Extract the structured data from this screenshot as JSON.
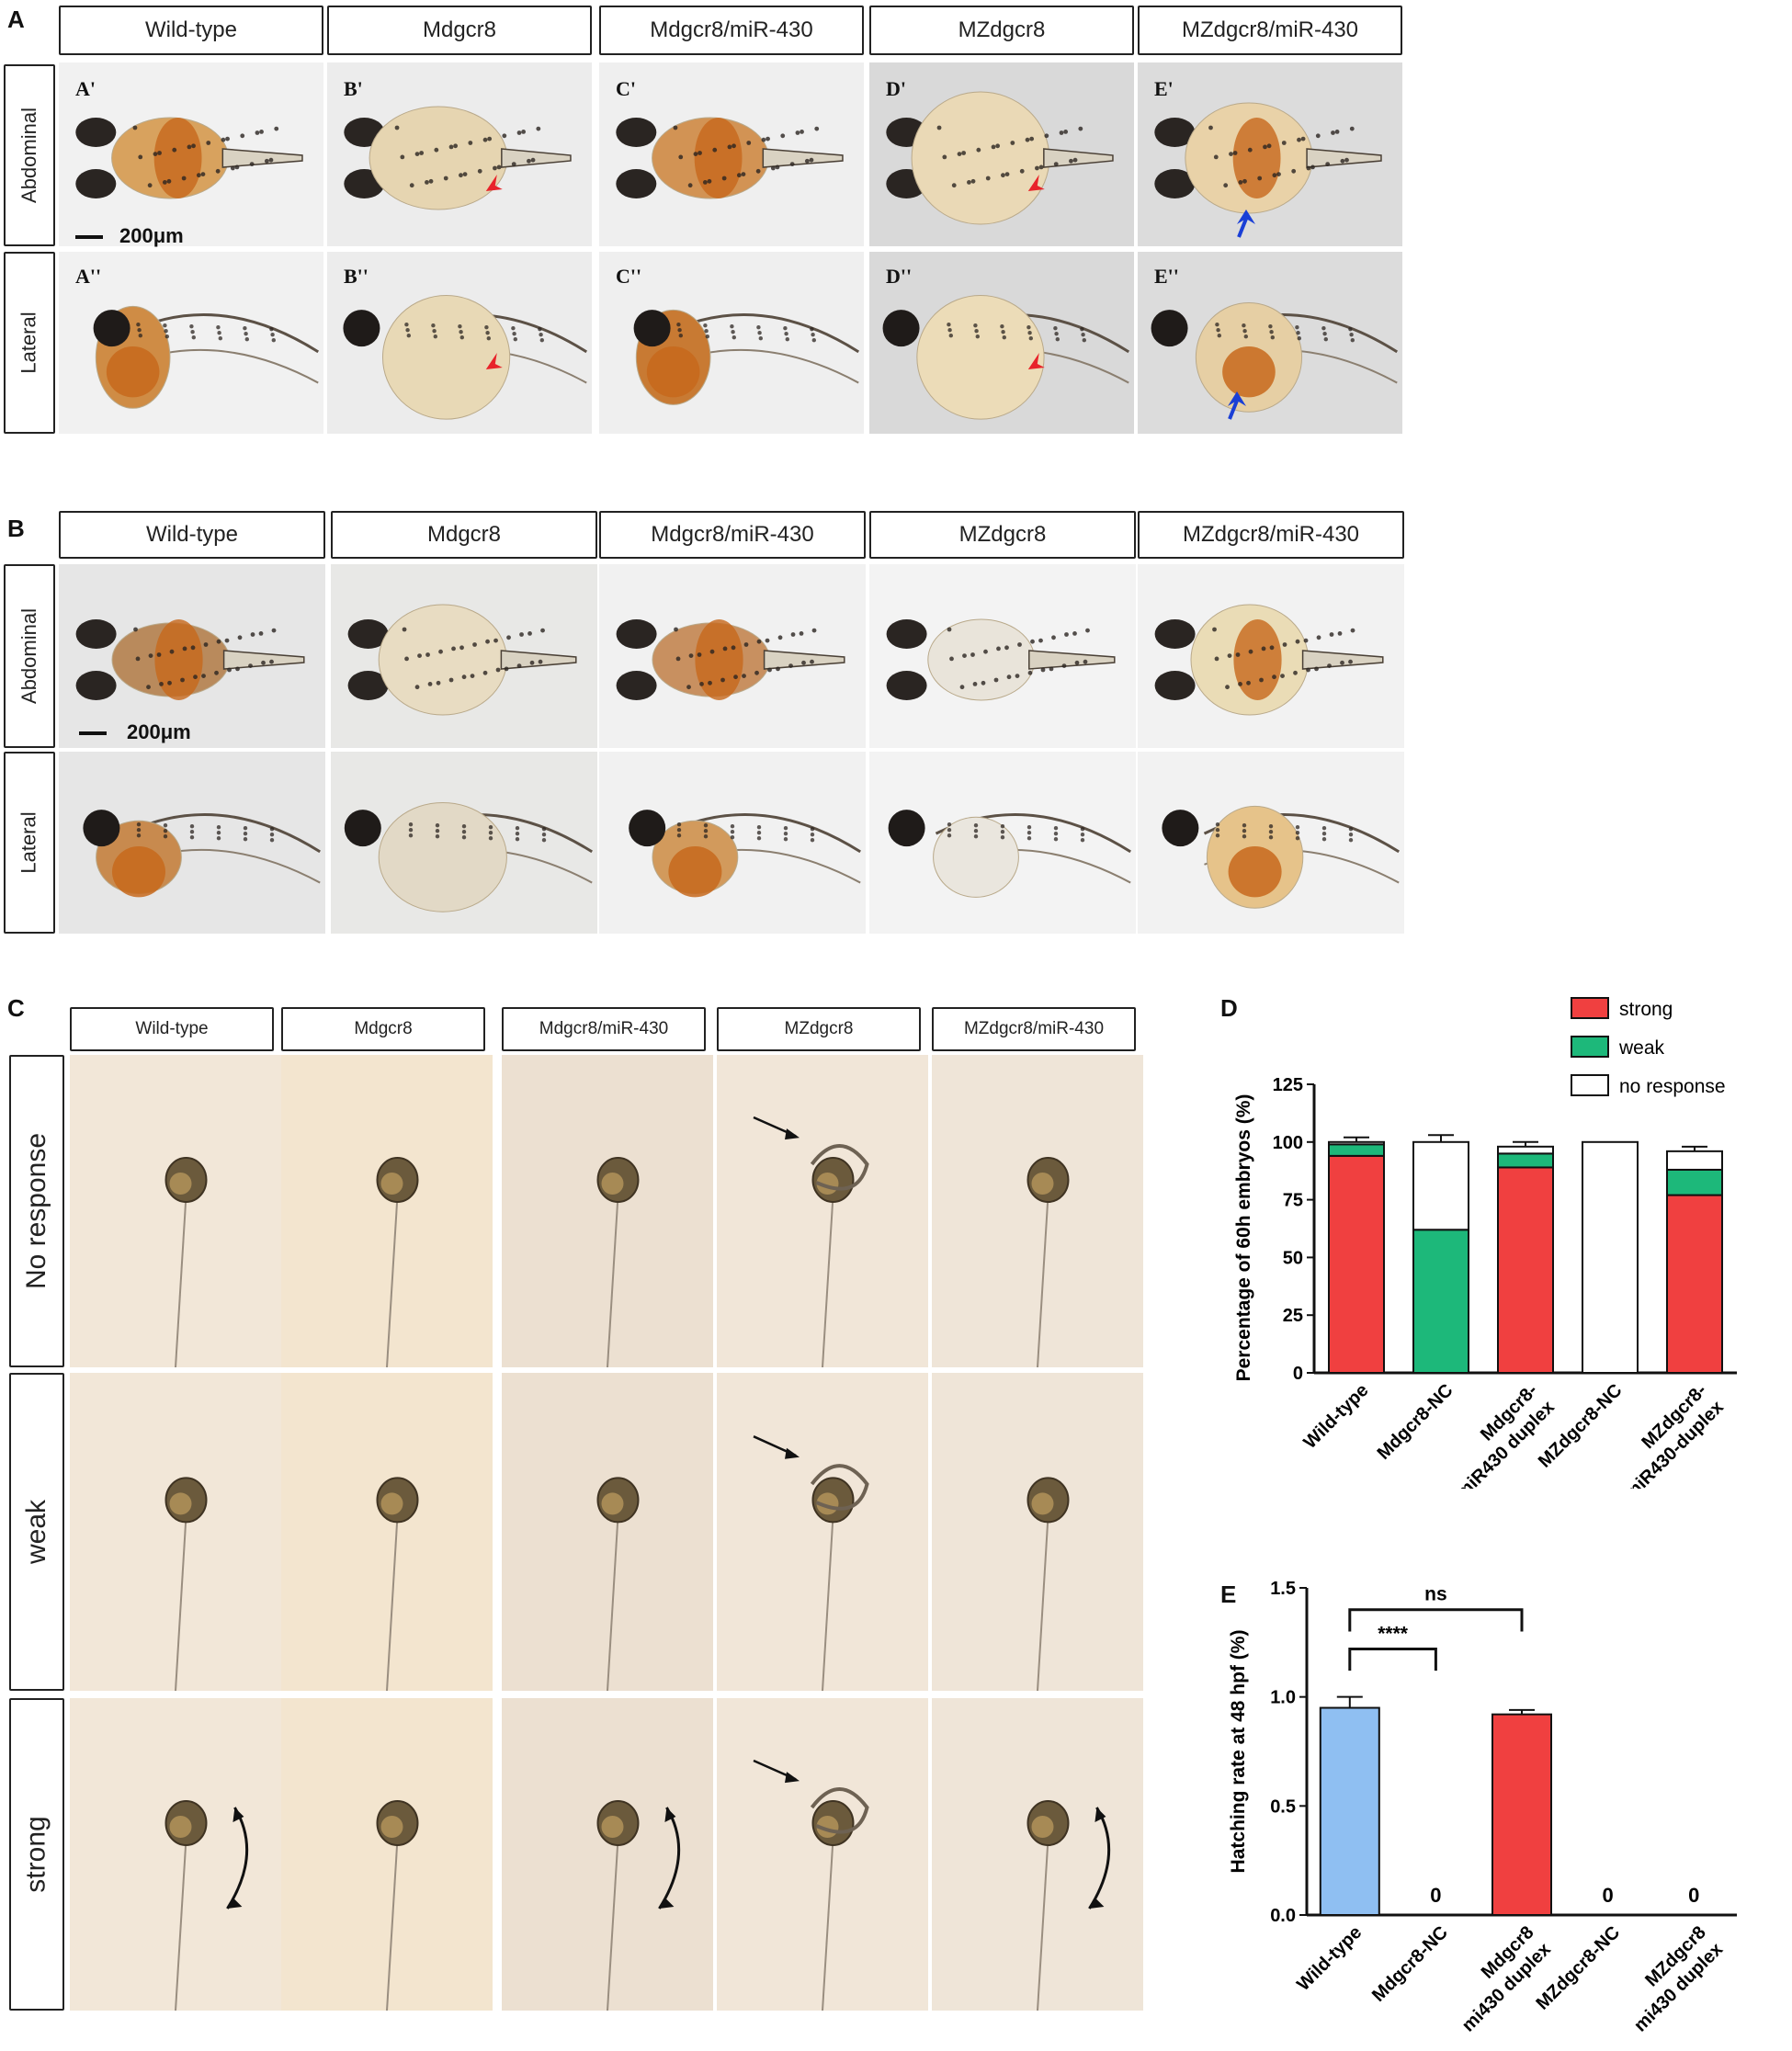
{
  "panels": {
    "A": {
      "label": "A",
      "columns": [
        "Wild-type",
        "Mdgcr8",
        "Mdgcr8/miR-430",
        "MZdgcr8",
        "MZdgcr8/miR-430"
      ],
      "rows": [
        "Abdominal",
        "Lateral"
      ],
      "sublabels_abdominal": [
        "A'",
        "B'",
        "C'",
        "D'",
        "E'"
      ],
      "sublabels_lateral": [
        "A''",
        "B''",
        "C''",
        "D''",
        "E''"
      ],
      "scale": "200μm"
    },
    "B": {
      "label": "B",
      "columns": [
        "Wild-type",
        "Mdgcr8",
        "Mdgcr8/miR-430",
        "MZdgcr8",
        "MZdgcr8/miR-430"
      ],
      "rows": [
        "Abdominal",
        "Lateral"
      ],
      "scale": "200μm"
    },
    "C": {
      "label": "C",
      "columns": [
        "Wild-type",
        "Mdgcr8",
        "Mdgcr8/miR-430",
        "MZdgcr8",
        "MZdgcr8/miR-430"
      ],
      "rows": [
        "No response",
        "weak",
        "strong"
      ]
    },
    "D": {
      "label": "D"
    },
    "E": {
      "label": "E"
    }
  },
  "colors": {
    "strong": "#f04040",
    "weak": "#1db87a",
    "none": "#ffffff",
    "wildtype_bar": "#8fbff2",
    "arrow_red": "#e8232a",
    "arrow_blue": "#1a3fd6"
  },
  "chart_data": [
    {
      "panel": "D",
      "type": "bar",
      "stacked": true,
      "categories": [
        "Wild-type",
        "Mdgcr8-NC",
        "Mdgcr8-miR430 duplex",
        "MZdgcr8-NC",
        "MZdgcr8-miR430-duplex"
      ],
      "category_lines": [
        [
          "Wild-type"
        ],
        [
          "Mdgcr8-NC"
        ],
        [
          "Mdgcr8-",
          "miR430 duplex"
        ],
        [
          "MZdgcr8-NC"
        ],
        [
          "MZdgcr8-",
          "miR430-duplex"
        ]
      ],
      "series": [
        {
          "name": "strong",
          "values": [
            94,
            0,
            89,
            0,
            77
          ]
        },
        {
          "name": "weak",
          "values": [
            5,
            62,
            6,
            0,
            11
          ]
        },
        {
          "name": "no response",
          "values": [
            1,
            38,
            3,
            100,
            8
          ]
        }
      ],
      "errors": [
        2,
        3,
        2,
        0,
        2
      ],
      "ylabel": "Percentage of 60h embryos (%)",
      "ylim": [
        0,
        125
      ],
      "yticks": [
        0,
        25,
        50,
        75,
        100,
        125
      ],
      "legend": "top-right"
    },
    {
      "panel": "E",
      "type": "bar",
      "categories": [
        "Wild-type",
        "Mdgcr8-NC",
        "Mdgcr8 mi430 duplex",
        "MZdgcr8-NC",
        "MZdgcr8 mi430 duplex"
      ],
      "category_lines": [
        [
          "Wild-type"
        ],
        [
          "Mdgcr8-NC"
        ],
        [
          "Mdgcr8",
          "mi430 duplex"
        ],
        [
          "MZdgcr8-NC"
        ],
        [
          "MZdgcr8",
          "mi430 duplex"
        ]
      ],
      "values": [
        0.95,
        0,
        0.92,
        0,
        0
      ],
      "errors": [
        0.05,
        0,
        0.02,
        0,
        0
      ],
      "value_labels": [
        "",
        "0",
        "",
        "0",
        "0"
      ],
      "ylabel": "Hatching rate at 48 hpf (%)",
      "ylim": [
        0,
        1.5
      ],
      "yticks": [
        "0.0",
        "0.5",
        "1.0",
        "1.5"
      ],
      "significance": [
        {
          "from": 0,
          "to": 1,
          "label": "****"
        },
        {
          "from": 0,
          "to": 2,
          "label": "ns"
        }
      ]
    }
  ]
}
